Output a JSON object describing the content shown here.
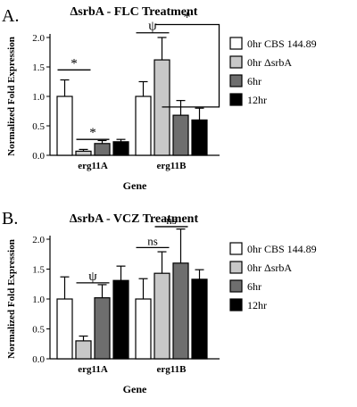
{
  "chart_data": [
    {
      "type": "bar",
      "panel_label": "A.",
      "title": "ΔsrbA - FLC  Treatment",
      "xlabel": "Gene",
      "ylabel": "Normalized  Fold  Expression",
      "categories": [
        "erg11A",
        "erg11B"
      ],
      "ylim": [
        0,
        2.0
      ],
      "yticks": [
        0.0,
        0.5,
        1.0,
        1.5,
        2.0
      ],
      "tick_labels": [
        "0.0",
        "0.5",
        "1.0",
        "1.5",
        "2.0"
      ],
      "series": [
        {
          "name": "0hr CBS 144.89",
          "fill": "#ffffff",
          "values": [
            1.0,
            1.0
          ],
          "errors": [
            0.28,
            0.25
          ]
        },
        {
          "name": "0hr ΔsrbA",
          "fill": "#c8c8c8",
          "values": [
            0.07,
            1.62
          ],
          "errors": [
            0.03,
            0.38
          ]
        },
        {
          "name": "6hr",
          "fill": "#6e6e6e",
          "values": [
            0.2,
            0.68
          ],
          "errors": [
            0.05,
            0.25
          ]
        },
        {
          "name": "12hr",
          "fill": "#000000",
          "values": [
            0.23,
            0.6
          ],
          "errors": [
            0.04,
            0.2
          ]
        }
      ],
      "annotations": [
        {
          "text": "*",
          "from": [
            0,
            0
          ],
          "to": [
            0,
            1
          ],
          "y": 1.45,
          "type": "line"
        },
        {
          "text": "*",
          "from": [
            0,
            1
          ],
          "to": [
            0,
            2
          ],
          "y": 0.27,
          "type": "line"
        },
        {
          "text": "ψ",
          "from": [
            1,
            0
          ],
          "to": [
            1,
            1
          ],
          "y": 2.08,
          "type": "line"
        },
        {
          "text": "*",
          "from": [
            1,
            1
          ],
          "to": [
            1,
            3
          ],
          "y": 2.22,
          "type": "bracket",
          "tail_y": 0.82
        }
      ],
      "legend_position": "right"
    },
    {
      "type": "bar",
      "panel_label": "B.",
      "title": "ΔsrbA - VCZ  Treatment",
      "xlabel": "Gene",
      "ylabel": "Normalized  Fold  Expression",
      "categories": [
        "erg11A",
        "erg11B"
      ],
      "ylim": [
        0,
        2.0
      ],
      "yticks": [
        0.0,
        0.5,
        1.0,
        1.5,
        2.0
      ],
      "tick_labels": [
        "0.0",
        "0.5",
        "1.0",
        "1.5",
        "2.0"
      ],
      "series": [
        {
          "name": "0hr CBS 144.89",
          "fill": "#ffffff",
          "values": [
            1.0,
            1.0
          ],
          "errors": [
            0.37,
            0.34
          ]
        },
        {
          "name": "0hr ΔsrbA",
          "fill": "#c8c8c8",
          "values": [
            0.3,
            1.43
          ],
          "errors": [
            0.08,
            0.36
          ]
        },
        {
          "name": "6hr",
          "fill": "#6e6e6e",
          "values": [
            1.02,
            1.6
          ],
          "errors": [
            0.22,
            0.57
          ]
        },
        {
          "name": "12hr",
          "fill": "#000000",
          "values": [
            1.31,
            1.33
          ],
          "errors": [
            0.24,
            0.16
          ]
        }
      ],
      "annotations": [
        {
          "text": "ψ",
          "from": [
            0,
            1
          ],
          "to": [
            0,
            2
          ],
          "y": 1.27,
          "type": "line"
        },
        {
          "text": "ns",
          "from": [
            1,
            0
          ],
          "to": [
            1,
            1
          ],
          "y": 1.86,
          "type": "line"
        },
        {
          "text": "ns",
          "from": [
            1,
            1
          ],
          "to": [
            1,
            2
          ],
          "y": 2.21,
          "type": "line"
        }
      ],
      "legend_position": "right"
    }
  ]
}
